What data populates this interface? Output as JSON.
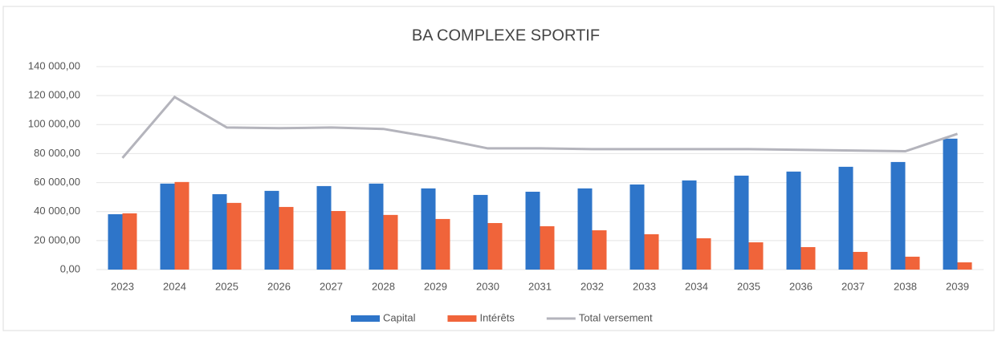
{
  "chart_data": {
    "type": "bar",
    "title": "BA COMPLEXE SPORTIF",
    "categories": [
      "2023",
      "2024",
      "2025",
      "2026",
      "2027",
      "2028",
      "2029",
      "2030",
      "2031",
      "2032",
      "2033",
      "2034",
      "2035",
      "2036",
      "2037",
      "2038",
      "2039"
    ],
    "series": [
      {
        "name": "Capital",
        "color": "#2e75c9",
        "type": "bar",
        "values": [
          38200,
          59300,
          52000,
          54300,
          57600,
          59300,
          56000,
          51500,
          53700,
          56000,
          58700,
          61500,
          64800,
          67600,
          70900,
          74200,
          90300
        ]
      },
      {
        "name": "Intérêts",
        "color": "#f0643a",
        "type": "bar",
        "values": [
          38800,
          60400,
          46000,
          43200,
          40400,
          37700,
          34900,
          32100,
          29900,
          27100,
          24400,
          21600,
          18800,
          15500,
          12200,
          8900,
          5000
        ]
      },
      {
        "name": "Total versement",
        "color": "#b4b4bc",
        "type": "line",
        "values": [
          77000,
          119000,
          98000,
          97500,
          98000,
          97000,
          90900,
          83600,
          83600,
          83100,
          83100,
          83100,
          83100,
          82600,
          82100,
          81600,
          93600
        ]
      }
    ],
    "ylim": [
      0,
      140000
    ],
    "yticks": [
      {
        "value": 0,
        "label": "0,00"
      },
      {
        "value": 20000,
        "label": "20 000,00"
      },
      {
        "value": 40000,
        "label": "40 000,00"
      },
      {
        "value": 60000,
        "label": "60 000,00"
      },
      {
        "value": 80000,
        "label": "80 000,00"
      },
      {
        "value": 100000,
        "label": "100 000,00"
      },
      {
        "value": 120000,
        "label": "120 000,00"
      },
      {
        "value": 140000,
        "label": "140 000,00"
      }
    ],
    "grid": true,
    "legend": "bottom"
  }
}
